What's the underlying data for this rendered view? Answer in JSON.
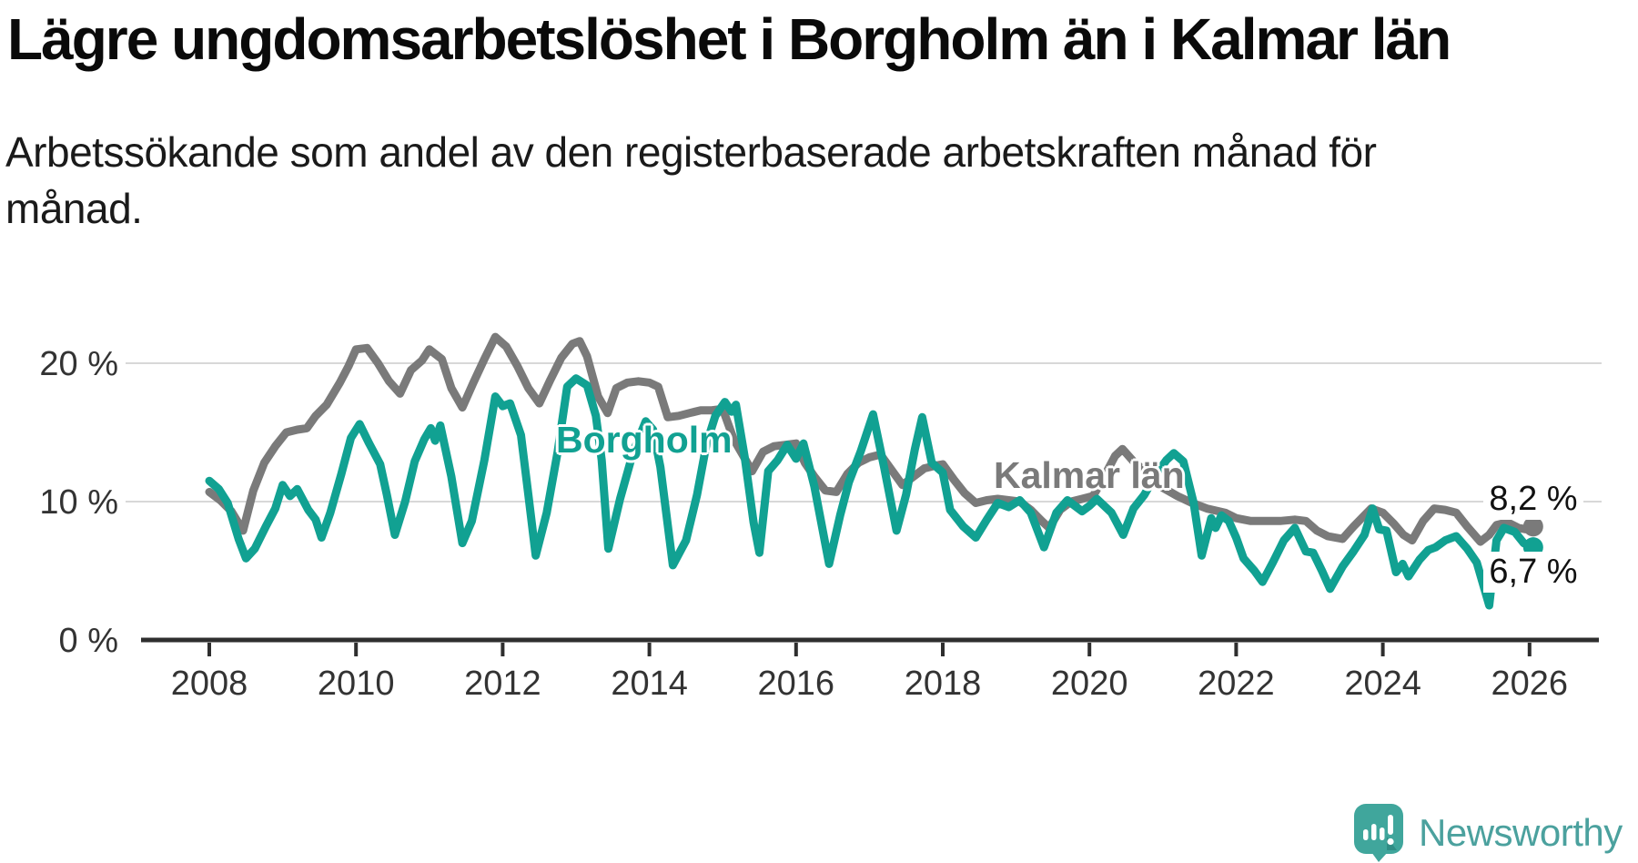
{
  "header": {
    "title": "Lägre ungdomsarbetslöshet i Borgholm än i Kalmar län",
    "subtitle_line1": "Arbetssökande som andel av den registerbaserade arbetskraften månad för",
    "subtitle_line2": "månad."
  },
  "chart_data": {
    "type": "line",
    "unit": "%",
    "x_tick_labels": [
      "2008",
      "2010",
      "2012",
      "2014",
      "2016",
      "2018",
      "2020",
      "2022",
      "2024",
      "2026"
    ],
    "x_ticks": [
      2008,
      2010,
      2012,
      2014,
      2016,
      2018,
      2020,
      2022,
      2024,
      2026
    ],
    "y_ticks": [
      0,
      10,
      20
    ],
    "y_tick_labels": [
      "0 %",
      "10 %",
      "20 %"
    ],
    "xlim": [
      2007.9,
      2026.95
    ],
    "ylim": [
      0,
      26
    ],
    "grid": "horizontal-at-10-and-20",
    "legend_position": "inline-labels-on-lines",
    "series": [
      {
        "name": "Kalmar län",
        "label": "Kalmar län",
        "color": "#7a7a7a",
        "end_value": 8.2,
        "end_value_label": "8,2 %",
        "points": [
          [
            2008.0,
            10.7
          ],
          [
            2008.15,
            10.1
          ],
          [
            2008.3,
            9.3
          ],
          [
            2008.46,
            7.9
          ],
          [
            2008.6,
            10.8
          ],
          [
            2008.75,
            12.8
          ],
          [
            2008.9,
            14.0
          ],
          [
            2009.05,
            15.0
          ],
          [
            2009.2,
            15.2
          ],
          [
            2009.33,
            15.3
          ],
          [
            2009.45,
            16.2
          ],
          [
            2009.6,
            17.0
          ],
          [
            2009.78,
            18.6
          ],
          [
            2009.9,
            19.8
          ],
          [
            2010.0,
            21.0
          ],
          [
            2010.15,
            21.1
          ],
          [
            2010.3,
            20.0
          ],
          [
            2010.45,
            18.7
          ],
          [
            2010.6,
            17.8
          ],
          [
            2010.75,
            19.5
          ],
          [
            2010.9,
            20.2
          ],
          [
            2011.0,
            21.0
          ],
          [
            2011.17,
            20.3
          ],
          [
            2011.3,
            18.2
          ],
          [
            2011.45,
            16.8
          ],
          [
            2011.6,
            18.6
          ],
          [
            2011.75,
            20.3
          ],
          [
            2011.9,
            21.9
          ],
          [
            2012.05,
            21.2
          ],
          [
            2012.2,
            19.8
          ],
          [
            2012.35,
            18.2
          ],
          [
            2012.5,
            17.1
          ],
          [
            2012.65,
            18.8
          ],
          [
            2012.8,
            20.4
          ],
          [
            2012.95,
            21.4
          ],
          [
            2013.05,
            21.6
          ],
          [
            2013.15,
            20.5
          ],
          [
            2013.3,
            17.6
          ],
          [
            2013.43,
            16.4
          ],
          [
            2013.55,
            18.2
          ],
          [
            2013.7,
            18.6
          ],
          [
            2013.85,
            18.7
          ],
          [
            2014.0,
            18.6
          ],
          [
            2014.12,
            18.3
          ],
          [
            2014.25,
            16.1
          ],
          [
            2014.4,
            16.2
          ],
          [
            2014.55,
            16.4
          ],
          [
            2014.7,
            16.6
          ],
          [
            2014.85,
            16.6
          ],
          [
            2015.0,
            16.7
          ],
          [
            2015.15,
            14.5
          ],
          [
            2015.28,
            13.3
          ],
          [
            2015.4,
            12.2
          ],
          [
            2015.55,
            13.6
          ],
          [
            2015.7,
            14.0
          ],
          [
            2015.85,
            14.1
          ],
          [
            2016.0,
            14.2
          ],
          [
            2016.12,
            12.8
          ],
          [
            2016.25,
            11.8
          ],
          [
            2016.4,
            10.8
          ],
          [
            2016.55,
            10.7
          ],
          [
            2016.7,
            12.0
          ],
          [
            2016.85,
            12.8
          ],
          [
            2017.0,
            13.2
          ],
          [
            2017.15,
            13.4
          ],
          [
            2017.3,
            12.3
          ],
          [
            2017.45,
            11.2
          ],
          [
            2017.6,
            11.8
          ],
          [
            2017.75,
            12.4
          ],
          [
            2017.9,
            12.6
          ],
          [
            2018.0,
            12.7
          ],
          [
            2018.15,
            11.6
          ],
          [
            2018.3,
            10.6
          ],
          [
            2018.45,
            9.9
          ],
          [
            2018.6,
            10.1
          ],
          [
            2018.75,
            10.2
          ],
          [
            2018.9,
            10.1
          ],
          [
            2019.05,
            10.0
          ],
          [
            2019.2,
            9.4
          ],
          [
            2019.35,
            8.6
          ],
          [
            2019.45,
            8.1
          ],
          [
            2019.6,
            9.4
          ],
          [
            2019.75,
            10.0
          ],
          [
            2019.9,
            10.2
          ],
          [
            2020.05,
            10.4
          ],
          [
            2020.2,
            11.8
          ],
          [
            2020.35,
            13.3
          ],
          [
            2020.45,
            13.8
          ],
          [
            2020.6,
            12.9
          ],
          [
            2020.8,
            12.0
          ],
          [
            2021.0,
            11.0
          ],
          [
            2021.2,
            10.4
          ],
          [
            2021.4,
            9.9
          ],
          [
            2021.6,
            9.5
          ],
          [
            2021.85,
            9.2
          ],
          [
            2022.0,
            8.8
          ],
          [
            2022.2,
            8.6
          ],
          [
            2022.4,
            8.6
          ],
          [
            2022.6,
            8.6
          ],
          [
            2022.8,
            8.7
          ],
          [
            2022.95,
            8.6
          ],
          [
            2023.1,
            7.9
          ],
          [
            2023.25,
            7.5
          ],
          [
            2023.45,
            7.3
          ],
          [
            2023.6,
            8.2
          ],
          [
            2023.84,
            9.5
          ],
          [
            2024.0,
            9.2
          ],
          [
            2024.15,
            8.4
          ],
          [
            2024.28,
            7.6
          ],
          [
            2024.4,
            7.2
          ],
          [
            2024.55,
            8.6
          ],
          [
            2024.7,
            9.5
          ],
          [
            2024.85,
            9.4
          ],
          [
            2025.0,
            9.2
          ],
          [
            2025.15,
            8.2
          ],
          [
            2025.33,
            7.1
          ],
          [
            2025.45,
            7.6
          ],
          [
            2025.55,
            8.3
          ],
          [
            2025.7,
            8.5
          ],
          [
            2025.85,
            8.1
          ],
          [
            2025.95,
            8.0
          ],
          [
            2026.05,
            8.2
          ]
        ]
      },
      {
        "name": "Borgholm",
        "label": "Borgholm",
        "color": "#11a192",
        "end_value": 6.7,
        "end_value_label": "6,7 %",
        "points": [
          [
            2008.0,
            11.5
          ],
          [
            2008.13,
            10.9
          ],
          [
            2008.25,
            9.9
          ],
          [
            2008.4,
            7.3
          ],
          [
            2008.5,
            5.9
          ],
          [
            2008.62,
            6.6
          ],
          [
            2008.77,
            8.2
          ],
          [
            2008.9,
            9.5
          ],
          [
            2009.0,
            11.2
          ],
          [
            2009.1,
            10.4
          ],
          [
            2009.2,
            10.9
          ],
          [
            2009.35,
            9.4
          ],
          [
            2009.45,
            8.7
          ],
          [
            2009.53,
            7.4
          ],
          [
            2009.65,
            9.2
          ],
          [
            2009.8,
            12.0
          ],
          [
            2009.93,
            14.6
          ],
          [
            2010.05,
            15.6
          ],
          [
            2010.18,
            14.2
          ],
          [
            2010.33,
            12.7
          ],
          [
            2010.42,
            10.5
          ],
          [
            2010.53,
            7.6
          ],
          [
            2010.67,
            10.0
          ],
          [
            2010.8,
            12.9
          ],
          [
            2010.93,
            14.5
          ],
          [
            2011.02,
            15.3
          ],
          [
            2011.08,
            14.4
          ],
          [
            2011.15,
            15.5
          ],
          [
            2011.3,
            11.8
          ],
          [
            2011.45,
            7.0
          ],
          [
            2011.58,
            8.6
          ],
          [
            2011.75,
            13.0
          ],
          [
            2011.9,
            17.6
          ],
          [
            2012.0,
            16.9
          ],
          [
            2012.1,
            17.1
          ],
          [
            2012.25,
            14.8
          ],
          [
            2012.35,
            10.5
          ],
          [
            2012.45,
            6.1
          ],
          [
            2012.6,
            9.2
          ],
          [
            2012.75,
            13.6
          ],
          [
            2012.88,
            18.3
          ],
          [
            2013.0,
            18.9
          ],
          [
            2013.15,
            18.4
          ],
          [
            2013.27,
            16.2
          ],
          [
            2013.35,
            13.0
          ],
          [
            2013.44,
            6.6
          ],
          [
            2013.6,
            10.2
          ],
          [
            2013.78,
            13.6
          ],
          [
            2013.95,
            15.8
          ],
          [
            2014.05,
            15.2
          ],
          [
            2014.15,
            12.5
          ],
          [
            2014.32,
            5.4
          ],
          [
            2014.5,
            7.2
          ],
          [
            2014.65,
            10.5
          ],
          [
            2014.78,
            14.2
          ],
          [
            2014.9,
            16.2
          ],
          [
            2015.03,
            17.2
          ],
          [
            2015.12,
            16.5
          ],
          [
            2015.18,
            17.0
          ],
          [
            2015.3,
            13.2
          ],
          [
            2015.42,
            8.5
          ],
          [
            2015.5,
            6.3
          ],
          [
            2015.62,
            12.2
          ],
          [
            2015.75,
            13.0
          ],
          [
            2015.88,
            14.1
          ],
          [
            2016.0,
            13.1
          ],
          [
            2016.1,
            14.2
          ],
          [
            2016.25,
            11.1
          ],
          [
            2016.45,
            5.5
          ],
          [
            2016.6,
            9.0
          ],
          [
            2016.72,
            11.4
          ],
          [
            2016.88,
            13.6
          ],
          [
            2017.05,
            16.3
          ],
          [
            2017.2,
            12.5
          ],
          [
            2017.37,
            7.9
          ],
          [
            2017.5,
            10.5
          ],
          [
            2017.62,
            13.8
          ],
          [
            2017.72,
            16.1
          ],
          [
            2017.85,
            12.8
          ],
          [
            2018.0,
            12.1
          ],
          [
            2018.1,
            9.4
          ],
          [
            2018.28,
            8.2
          ],
          [
            2018.45,
            7.4
          ],
          [
            2018.6,
            8.7
          ],
          [
            2018.75,
            9.9
          ],
          [
            2018.9,
            9.6
          ],
          [
            2019.05,
            10.1
          ],
          [
            2019.2,
            9.2
          ],
          [
            2019.38,
            6.7
          ],
          [
            2019.55,
            9.2
          ],
          [
            2019.7,
            10.1
          ],
          [
            2019.8,
            9.7
          ],
          [
            2019.9,
            9.3
          ],
          [
            2020.0,
            9.7
          ],
          [
            2020.1,
            10.2
          ],
          [
            2020.3,
            9.2
          ],
          [
            2020.46,
            7.6
          ],
          [
            2020.6,
            9.5
          ],
          [
            2020.75,
            10.5
          ],
          [
            2020.9,
            11.9
          ],
          [
            2021.05,
            13.0
          ],
          [
            2021.15,
            13.5
          ],
          [
            2021.28,
            12.9
          ],
          [
            2021.42,
            9.9
          ],
          [
            2021.53,
            6.1
          ],
          [
            2021.66,
            8.8
          ],
          [
            2021.72,
            8.1
          ],
          [
            2021.8,
            9.0
          ],
          [
            2021.9,
            8.6
          ],
          [
            2022.0,
            7.4
          ],
          [
            2022.1,
            5.9
          ],
          [
            2022.25,
            5.0
          ],
          [
            2022.36,
            4.2
          ],
          [
            2022.5,
            5.6
          ],
          [
            2022.65,
            7.2
          ],
          [
            2022.8,
            8.1
          ],
          [
            2022.95,
            6.4
          ],
          [
            2023.05,
            6.3
          ],
          [
            2023.17,
            5.0
          ],
          [
            2023.28,
            3.7
          ],
          [
            2023.45,
            5.3
          ],
          [
            2023.6,
            6.4
          ],
          [
            2023.75,
            7.6
          ],
          [
            2023.86,
            9.5
          ],
          [
            2023.95,
            8.0
          ],
          [
            2024.05,
            7.9
          ],
          [
            2024.18,
            4.9
          ],
          [
            2024.27,
            5.5
          ],
          [
            2024.35,
            4.6
          ],
          [
            2024.5,
            5.8
          ],
          [
            2024.62,
            6.5
          ],
          [
            2024.72,
            6.7
          ],
          [
            2024.85,
            7.2
          ],
          [
            2025.0,
            7.5
          ],
          [
            2025.15,
            6.6
          ],
          [
            2025.28,
            5.6
          ],
          [
            2025.45,
            2.5
          ],
          [
            2025.55,
            7.2
          ],
          [
            2025.65,
            8.1
          ],
          [
            2025.8,
            7.8
          ],
          [
            2025.92,
            7.0
          ],
          [
            2026.05,
            6.7
          ]
        ]
      }
    ]
  },
  "style": {
    "grid_color": "#d8d8d8",
    "axis_color": "#2e2e2e",
    "tick_text_color": "#333333",
    "line_width": 9,
    "end_dot_radius": 11
  },
  "branding": {
    "logo_text": "Newsworthy",
    "logo_text_color": "#4ba19e",
    "bubble_color": "#40a69c",
    "bubble_shade_color": "#2f8d85"
  }
}
